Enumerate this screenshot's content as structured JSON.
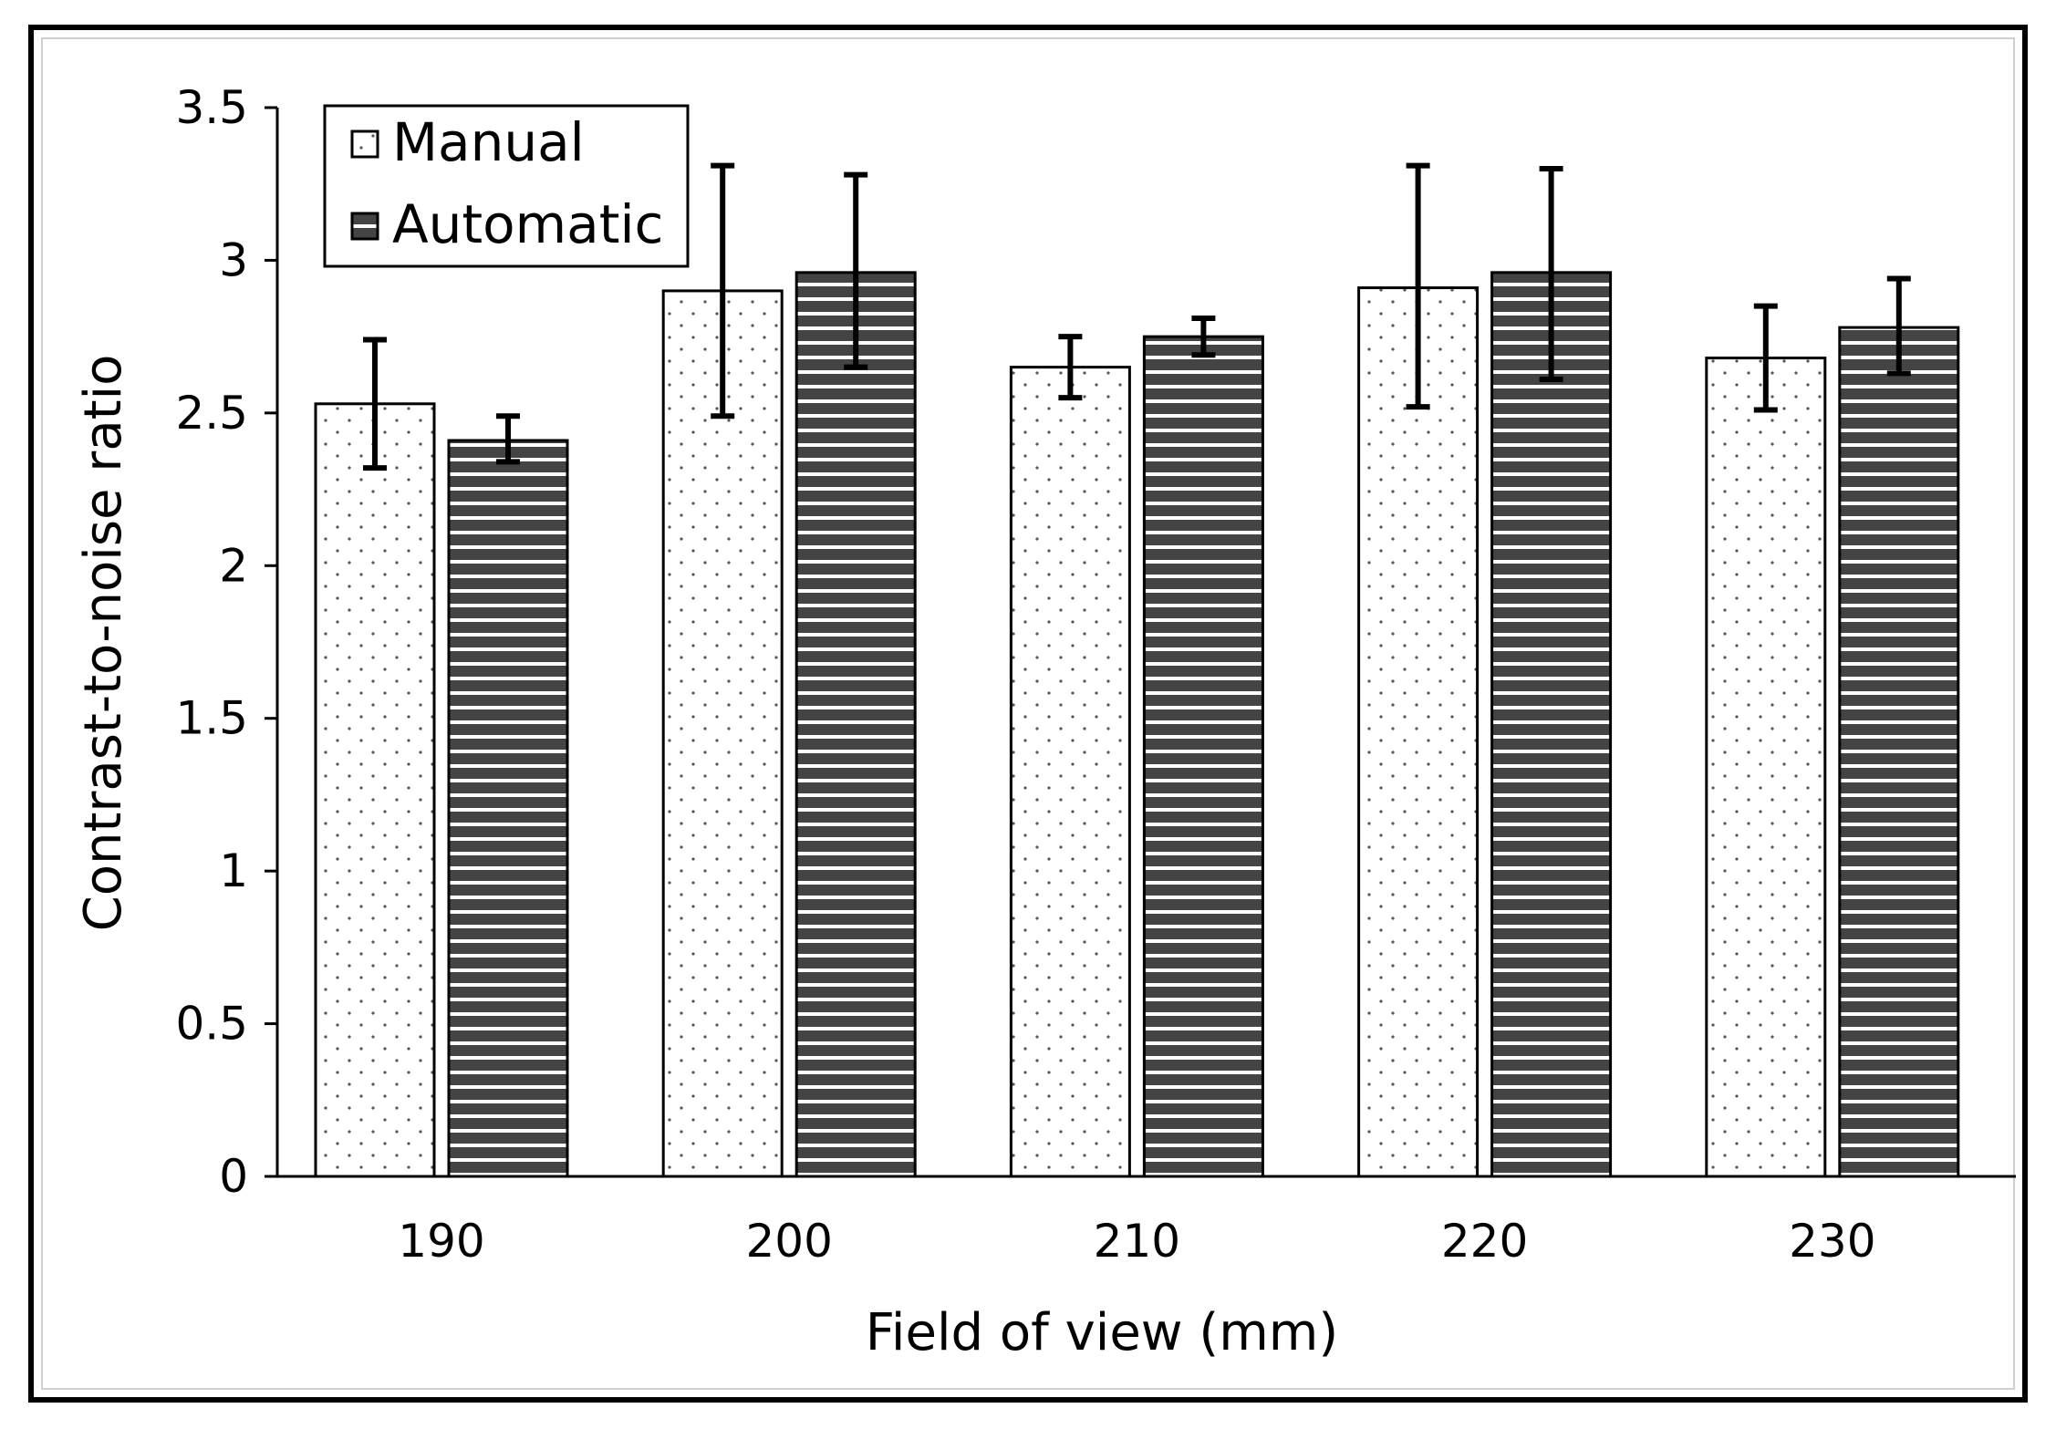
{
  "chart_data": {
    "type": "bar",
    "title": "",
    "xlabel": "Field of view (mm)",
    "ylabel": "Contrast-to-noise ratio",
    "categories": [
      "190",
      "200",
      "210",
      "220",
      "230"
    ],
    "series": [
      {
        "name": "Manual",
        "pattern": "dots",
        "values": [
          2.53,
          2.9,
          2.65,
          2.91,
          2.68
        ],
        "error_low": [
          2.32,
          2.49,
          2.55,
          2.52,
          2.51
        ],
        "error_high": [
          2.74,
          3.31,
          2.75,
          3.31,
          2.85
        ]
      },
      {
        "name": "Automatic",
        "pattern": "horizontal-stripes",
        "values": [
          2.41,
          2.96,
          2.75,
          2.96,
          2.78
        ],
        "error_low": [
          2.34,
          2.65,
          2.69,
          2.61,
          2.63
        ],
        "error_high": [
          2.49,
          3.28,
          2.81,
          3.3,
          2.94
        ]
      }
    ],
    "ylim": [
      0,
      3.5
    ],
    "yticks": [
      0,
      0.5,
      1,
      1.5,
      2,
      2.5,
      3,
      3.5
    ],
    "ytick_labels": [
      "0",
      "0.5",
      "1",
      "1.5",
      "2",
      "2.5",
      "3",
      "3.5"
    ],
    "grid": false,
    "legend_position": "top-left",
    "colors": {
      "manual_fill": "#ffffff",
      "automatic_fill": "#444444",
      "stripe": "#ffffff",
      "outline": "#000000"
    }
  }
}
